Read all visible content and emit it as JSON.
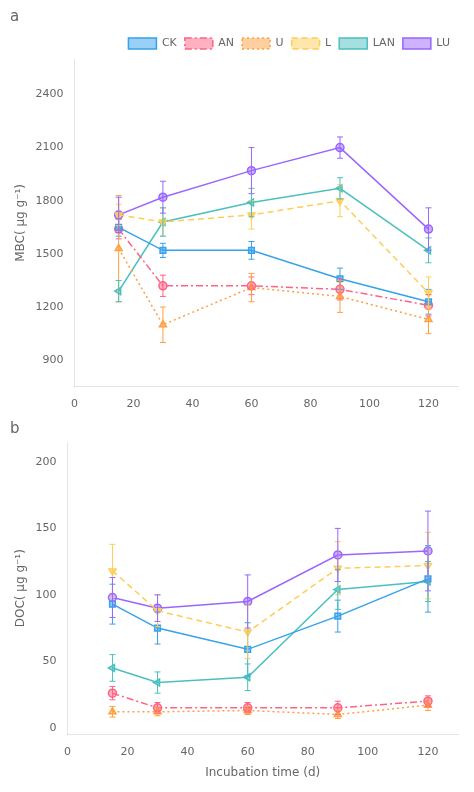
{
  "chart_data": [
    {
      "type": "line",
      "title": "a",
      "x": [
        15,
        30,
        60,
        90,
        120
      ],
      "ylabel": "MBC( μg g⁻¹)",
      "series": [
        {
          "name": "CK",
          "values": [
            1650,
            1520,
            1520,
            1360,
            1230
          ],
          "errors": [
            50,
            40,
            50,
            60,
            70
          ],
          "marker": "square",
          "line_style": "solid"
        },
        {
          "name": "AN",
          "values": [
            1640,
            1320,
            1320,
            1300,
            1210
          ],
          "errors": [
            55,
            60,
            50,
            60,
            60
          ],
          "marker": "circle",
          "line_style": "dashdot"
        },
        {
          "name": "U",
          "values": [
            1530,
            1100,
            1310,
            1260,
            1130
          ],
          "errors": [
            300,
            100,
            80,
            90,
            80
          ],
          "marker": "triangle_up",
          "line_style": "dotted"
        },
        {
          "name": "L",
          "values": [
            1720,
            1680,
            1720,
            1800,
            1280
          ],
          "errors": [
            60,
            80,
            80,
            90,
            90
          ],
          "marker": "triangle_down",
          "line_style": "dashed"
        },
        {
          "name": "LAN",
          "values": [
            1290,
            1680,
            1790,
            1870,
            1520
          ],
          "errors": [
            60,
            80,
            80,
            60,
            70
          ],
          "marker": "triangle_left",
          "line_style": "solid"
        },
        {
          "name": "LU",
          "values": [
            1720,
            1820,
            1970,
            2100,
            1640
          ],
          "errors": [
            100,
            90,
            130,
            60,
            120
          ],
          "marker": "circle",
          "line_style": "solid"
        }
      ],
      "xlim": [
        0,
        130
      ],
      "xticks": [
        0,
        20,
        40,
        60,
        80,
        100,
        120
      ],
      "ylim": [
        750,
        2600
      ],
      "yticks": [
        900,
        1200,
        1500,
        1800,
        2100,
        2400
      ],
      "grid": false,
      "legend": "upper right"
    },
    {
      "type": "line",
      "title": "b",
      "x": [
        15,
        30,
        60,
        90,
        120
      ],
      "xlabel": "Incubation time (d)",
      "ylabel": "DOC( μg g⁻¹)",
      "series": [
        {
          "name": "CK",
          "values": [
            93,
            75,
            59,
            84,
            112
          ],
          "errors": [
            15,
            12,
            20,
            12,
            25
          ],
          "marker": "square",
          "line_style": "solid"
        },
        {
          "name": "AN",
          "values": [
            26,
            15,
            15,
            15,
            20
          ],
          "errors": [
            5,
            4,
            4,
            5,
            4
          ],
          "marker": "circle",
          "line_style": "dashdot"
        },
        {
          "name": "U",
          "values": [
            12,
            12,
            13,
            10,
            17
          ],
          "errors": [
            4,
            3,
            3,
            3,
            4
          ],
          "marker": "triangle_up",
          "line_style": "dotted"
        },
        {
          "name": "L",
          "values": [
            118,
            88,
            72,
            120,
            122
          ],
          "errors": [
            20,
            12,
            20,
            20,
            25
          ],
          "marker": "triangle_down",
          "line_style": "dashed"
        },
        {
          "name": "LAN",
          "values": [
            45,
            34,
            38,
            104,
            110
          ],
          "errors": [
            10,
            8,
            10,
            15,
            15
          ],
          "marker": "triangle_left",
          "line_style": "solid"
        },
        {
          "name": "LU",
          "values": [
            98,
            90,
            95,
            130,
            133
          ],
          "errors": [
            15,
            10,
            20,
            20,
            30
          ],
          "marker": "circle",
          "line_style": "solid"
        }
      ],
      "xlim": [
        0,
        130
      ],
      "xticks": [
        0,
        20,
        40,
        60,
        80,
        100,
        120
      ],
      "ylim": [
        -5,
        215
      ],
      "yticks": [
        0,
        50,
        100,
        150,
        200
      ],
      "grid": false
    }
  ]
}
